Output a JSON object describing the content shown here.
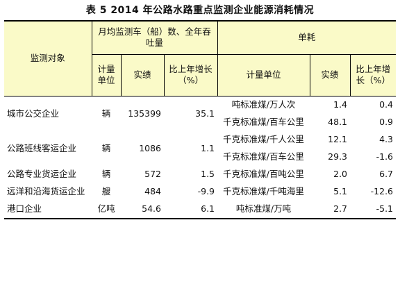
{
  "title": "表 5   2014 年公路水路重点监测企业能源消耗情况",
  "headers": {
    "object": "监测对象",
    "group_monthly": "月均监测车（船）数、全年吞吐量",
    "group_unit": "单耗",
    "unit": "计量单位",
    "actual": "实绩",
    "yoy": "比上年增长（%）",
    "unit2": "计量单位",
    "actual2": "实绩",
    "yoy2": "比上年增长（%）"
  },
  "rows": [
    {
      "object": "城市公交企业",
      "unit": "辆",
      "actual": "135399",
      "yoy": "35.1",
      "sub": [
        {
          "unit": "吨标准煤/万人次",
          "actual": "1.4",
          "yoy": "0.4"
        },
        {
          "unit": "千克标准煤/百车公里",
          "actual": "48.1",
          "yoy": "0.9"
        }
      ]
    },
    {
      "object": "公路班线客运企业",
      "unit": "辆",
      "actual": "1086",
      "yoy": "1.1",
      "sub": [
        {
          "unit": "千克标准煤/千人公里",
          "actual": "12.1",
          "yoy": "4.3"
        },
        {
          "unit": "千克标准煤/百车公里",
          "actual": "29.3",
          "yoy": "-1.6"
        }
      ]
    },
    {
      "object": "公路专业货运企业",
      "unit": "辆",
      "actual": "572",
      "yoy": "1.5",
      "sub": [
        {
          "unit": "千克标准煤/百吨公里",
          "actual": "2.0",
          "yoy": "6.7"
        }
      ]
    },
    {
      "object": "远洋和沿海货运企业",
      "unit": "艘",
      "actual": "484",
      "yoy": "-9.9",
      "sub": [
        {
          "unit": "千克标准煤/千吨海里",
          "actual": "5.1",
          "yoy": "-12.6"
        }
      ]
    },
    {
      "object": "港口企业",
      "unit": "亿吨",
      "actual": "54.6",
      "yoy": "6.1",
      "sub": [
        {
          "unit": "吨标准煤/万吨",
          "actual": "2.7",
          "yoy": "-5.1"
        }
      ]
    }
  ]
}
